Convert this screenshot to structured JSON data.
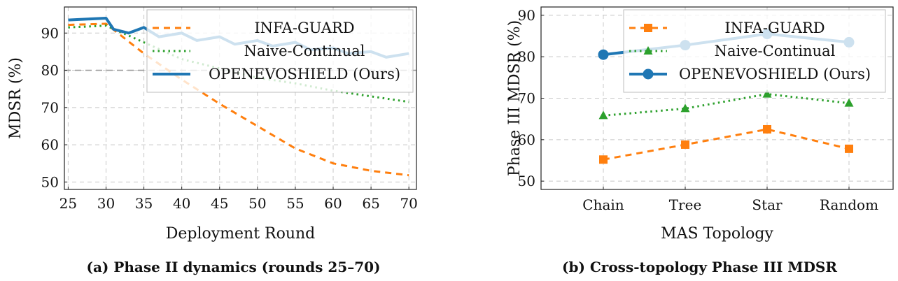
{
  "colors": {
    "infa": "#ff7f0e",
    "naive": "#2ca02c",
    "oes": "#1f77b4"
  },
  "legend": [
    {
      "key": "infa",
      "label": "INFA-GUARD"
    },
    {
      "key": "naive",
      "label": "Naive-Continual"
    },
    {
      "key": "oes",
      "label": "OPENEVOSHIELD (Ours)"
    }
  ],
  "chart_data": [
    {
      "type": "line",
      "caption": "(a) Phase II dynamics (rounds 25–70)",
      "xlabel": "Deployment Round",
      "ylabel": "MDSR (%)",
      "xlim": [
        24.5,
        71
      ],
      "ylim": [
        48,
        97
      ],
      "xticks": [
        25,
        30,
        35,
        40,
        45,
        50,
        55,
        60,
        65,
        70
      ],
      "yticks": [
        50,
        60,
        70,
        80,
        90
      ],
      "grid": true,
      "reference_line": 80,
      "legend_position": "top-right",
      "series": [
        {
          "key": "infa",
          "name": "INFA-GUARD",
          "x": [
            25,
            30,
            35,
            40,
            45,
            50,
            55,
            60,
            65,
            70
          ],
          "y": [
            92.2,
            92.5,
            84.5,
            77.5,
            71,
            65,
            59,
            55,
            53,
            51.8
          ]
        },
        {
          "key": "naive",
          "name": "Naive-Continual",
          "x": [
            25,
            30,
            35,
            40,
            45,
            50,
            55,
            60,
            65,
            70
          ],
          "y": [
            91.5,
            92,
            87.5,
            83,
            80.5,
            78,
            76.5,
            74.5,
            73,
            71.5
          ]
        },
        {
          "key": "oes",
          "name": "OPENEVOSHIELD (Ours)",
          "x": [
            25,
            30,
            31,
            33,
            35,
            37,
            40,
            42,
            45,
            47,
            50,
            52,
            55,
            57,
            60,
            62,
            65,
            67,
            70
          ],
          "y": [
            93.5,
            94,
            91,
            90,
            91.5,
            89,
            90,
            88,
            89,
            87,
            88,
            86.5,
            87.5,
            85.5,
            86,
            84.5,
            85,
            83.5,
            84.5
          ]
        }
      ]
    },
    {
      "type": "line",
      "caption": "(b) Cross-topology Phase III MDSR",
      "xlabel": "MAS Topology",
      "ylabel": "Phase III MDSR (%)",
      "categories": [
        "Chain",
        "Tree",
        "Star",
        "Random"
      ],
      "ylim": [
        48,
        92
      ],
      "yticks": [
        50,
        60,
        70,
        80,
        90
      ],
      "grid": true,
      "legend_position": "top-right",
      "series": [
        {
          "key": "infa",
          "name": "INFA-GUARD",
          "marker": "square",
          "values": [
            55.2,
            58.8,
            62.5,
            57.8
          ]
        },
        {
          "key": "naive",
          "name": "Naive-Continual",
          "marker": "triangle",
          "values": [
            65.8,
            67.5,
            71,
            68.8
          ]
        },
        {
          "key": "oes",
          "name": "OPENEVOSHIELD (Ours)",
          "marker": "circle",
          "values": [
            80.5,
            82.8,
            85.5,
            83.5
          ]
        }
      ]
    }
  ]
}
